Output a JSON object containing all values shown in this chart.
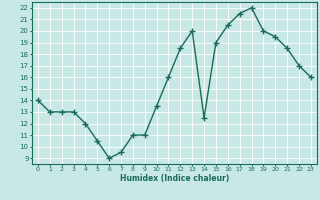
{
  "x": [
    0,
    1,
    2,
    3,
    4,
    5,
    6,
    7,
    8,
    9,
    10,
    11,
    12,
    13,
    14,
    15,
    16,
    17,
    18,
    19,
    20,
    21,
    22,
    23
  ],
  "y": [
    14,
    13,
    13,
    13,
    12,
    10.5,
    9,
    9.5,
    11,
    11,
    13.5,
    16,
    18.5,
    20,
    12.5,
    19,
    20.5,
    21.5,
    22,
    20,
    19.5,
    18.5,
    17,
    16
  ],
  "xlabel": "Humidex (Indice chaleur)",
  "xlim": [
    -0.5,
    23.5
  ],
  "ylim": [
    8.5,
    22.5
  ],
  "yticks": [
    9,
    10,
    11,
    12,
    13,
    14,
    15,
    16,
    17,
    18,
    19,
    20,
    21,
    22
  ],
  "xticks": [
    0,
    1,
    2,
    3,
    4,
    5,
    6,
    7,
    8,
    9,
    10,
    11,
    12,
    13,
    14,
    15,
    16,
    17,
    18,
    19,
    20,
    21,
    22,
    23
  ],
  "line_color": "#1a6b5a",
  "bg_color": "#c8e8e5",
  "grid_color": "#b0d8d5",
  "spine_color": "#1a6b5a",
  "label_color": "#1a6b5a",
  "tick_color": "#1a6b5a"
}
